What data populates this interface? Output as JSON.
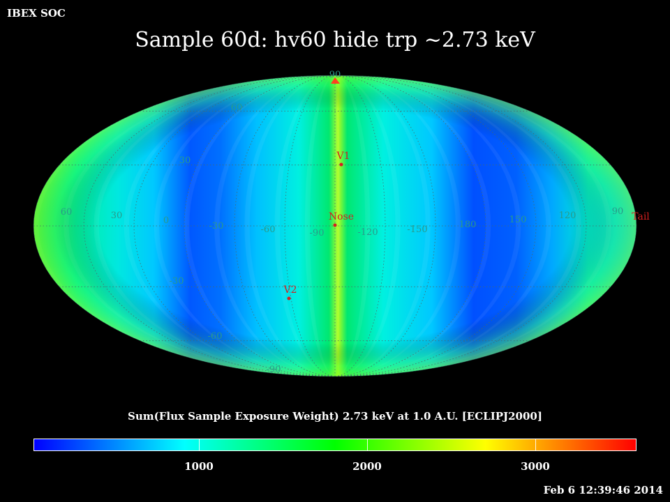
{
  "header": {
    "org": "IBEX SOC",
    "title": "Sample 60d: hv60 hide trp ~2.73 keV"
  },
  "map": {
    "projection": "mollweide",
    "grid_dotted": true,
    "lat_labels": [
      "90",
      "60",
      "30",
      "-30",
      "-60",
      "-90"
    ],
    "lon_labels_left": [
      "60",
      "30",
      "0",
      "-30",
      "-60",
      "-90"
    ],
    "lon_labels_right": [
      "-120",
      "-150",
      "180",
      "150",
      "120",
      "90"
    ],
    "markers": [
      {
        "label": "V1",
        "color": "#d42020"
      },
      {
        "label": "Nose",
        "color": "#d42020"
      },
      {
        "label": "V2",
        "color": "#d42020"
      },
      {
        "label": "Tail",
        "color": "#d42020"
      }
    ],
    "label_color": "#2a9a8a"
  },
  "colorbar": {
    "title": "Sum(Flux Sample Exposure Weight)  2.73 keV at 1.0 A.U. [ECLIPJ2000]",
    "range": [
      0,
      3600
    ],
    "tick_labels": [
      "1000",
      "2000",
      "3000"
    ],
    "tick_values": [
      1000,
      2000,
      3000
    ],
    "colors": [
      "#0000ff",
      "#00ffff",
      "#00ff00",
      "#ffff00",
      "#ff0000"
    ]
  },
  "footer": {
    "timestamp": "Feb  6 12:39:46 2014"
  }
}
